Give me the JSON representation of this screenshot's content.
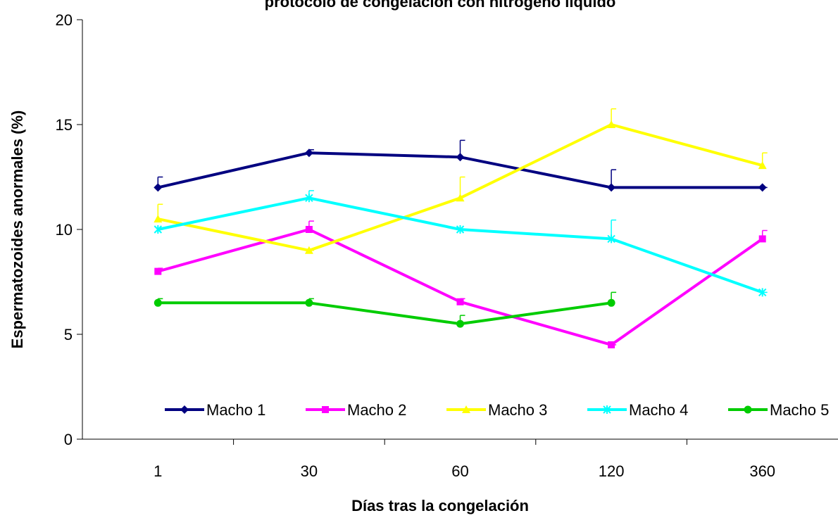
{
  "chart_data": {
    "type": "line",
    "title": "protocolo de  congelación con nitrógeno líquido",
    "x_label": "Días tras la congelación",
    "y_label": "Espermatozoides anormales (%)",
    "categories": [
      "1",
      "30",
      "60",
      "120",
      "360"
    ],
    "ylim": [
      0,
      20
    ],
    "yticks": [
      0,
      5,
      10,
      15,
      20
    ],
    "grid": false,
    "legend": "bottom",
    "series": [
      {
        "name": "Macho 1",
        "color": "#000080",
        "marker": "diamond",
        "values": [
          12,
          13.65,
          13.45,
          12,
          12
        ],
        "errors": [
          0.5,
          0.15,
          0.8,
          0.85,
          0
        ]
      },
      {
        "name": "Macho 2",
        "color": "#ff00ff",
        "marker": "square",
        "values": [
          8,
          10,
          6.55,
          4.5,
          9.55
        ],
        "errors": [
          0.15,
          0.4,
          0.15,
          0,
          0.4
        ]
      },
      {
        "name": "Macho 3",
        "color": "#ffff00",
        "marker": "triangle",
        "values": [
          10.5,
          9,
          11.5,
          15,
          13.05
        ],
        "errors": [
          0.7,
          0,
          1.0,
          0.75,
          0.6
        ]
      },
      {
        "name": "Macho 4",
        "color": "#00ffff",
        "marker": "x",
        "values": [
          10,
          11.5,
          10,
          9.55,
          7
        ],
        "errors": [
          0,
          0.35,
          0,
          0.9,
          0
        ]
      },
      {
        "name": "Macho 5",
        "color": "#00cc00",
        "marker": "circle",
        "values": [
          6.5,
          6.5,
          5.5,
          6.5,
          null
        ],
        "errors": [
          0.2,
          0.2,
          0.4,
          0.5,
          null
        ]
      }
    ]
  }
}
